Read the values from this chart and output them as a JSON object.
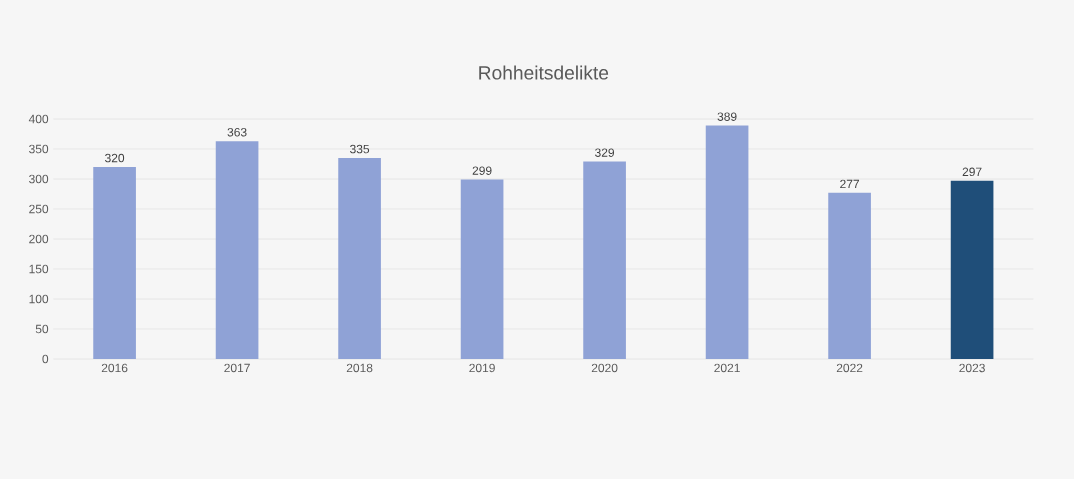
{
  "chart_data": {
    "type": "bar",
    "title": "Rohheitsdelikte",
    "categories": [
      "2016",
      "2017",
      "2018",
      "2019",
      "2020",
      "2021",
      "2022",
      "2023"
    ],
    "values": [
      320,
      363,
      335,
      299,
      329,
      389,
      277,
      297
    ],
    "colors": [
      "#8fa2d6",
      "#8fa2d6",
      "#8fa2d6",
      "#8fa2d6",
      "#8fa2d6",
      "#8fa2d6",
      "#8fa2d6",
      "#1f4e79"
    ],
    "ylim": [
      0,
      400
    ],
    "yticks": [
      0,
      50,
      100,
      150,
      200,
      250,
      300,
      350,
      400
    ],
    "grid": "y",
    "data_labels": true
  }
}
